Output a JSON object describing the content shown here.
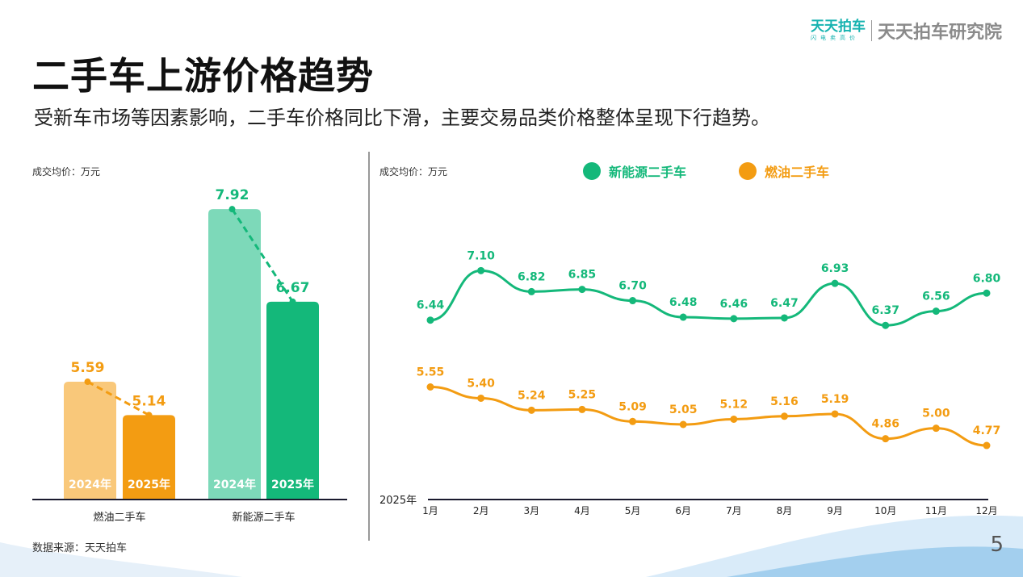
{
  "header": {
    "title": "二手车上游价格趋势",
    "subtitle": "受新车市场等因素影响，二手车价格同比下滑，主要交易品类价格整体呈现下行趋势。",
    "logo_brand": "天天拍车",
    "logo_tagline": "闪电卖高价",
    "logo_institute": "天天拍车研究院"
  },
  "footer": {
    "source": "数据来源：天天拍车",
    "page": "5"
  },
  "colors": {
    "fuel_light": "#f9c87a",
    "fuel": "#f39c12",
    "nev_light": "#7dd9b9",
    "nev": "#14b87a"
  },
  "chart_data": [
    {
      "type": "bar",
      "unit_label": "成交均价：万元",
      "categories": [
        "燃油二手车",
        "新能源二手车"
      ],
      "series": [
        {
          "name": "2024年",
          "values": [
            5.59,
            7.92
          ]
        },
        {
          "name": "2025年",
          "values": [
            5.14,
            6.67
          ]
        }
      ],
      "ylim": [
        4,
        8.2
      ],
      "grid": false
    },
    {
      "type": "line",
      "unit_label": "成交均价：万元",
      "x_prefix": "2025年",
      "categories": [
        "1月",
        "2月",
        "3月",
        "4月",
        "5月",
        "6月",
        "7月",
        "8月",
        "9月",
        "10月",
        "11月",
        "12月"
      ],
      "series": [
        {
          "name": "新能源二手车",
          "values": [
            6.44,
            7.1,
            6.82,
            6.85,
            6.7,
            6.48,
            6.46,
            6.47,
            6.93,
            6.37,
            6.56,
            6.8
          ]
        },
        {
          "name": "燃油二手车",
          "values": [
            5.55,
            5.4,
            5.24,
            5.25,
            5.09,
            5.05,
            5.12,
            5.16,
            5.19,
            4.86,
            5.0,
            4.77
          ]
        }
      ],
      "ylim": [
        4.05,
        7.6
      ],
      "grid": false,
      "legend": "top"
    }
  ]
}
